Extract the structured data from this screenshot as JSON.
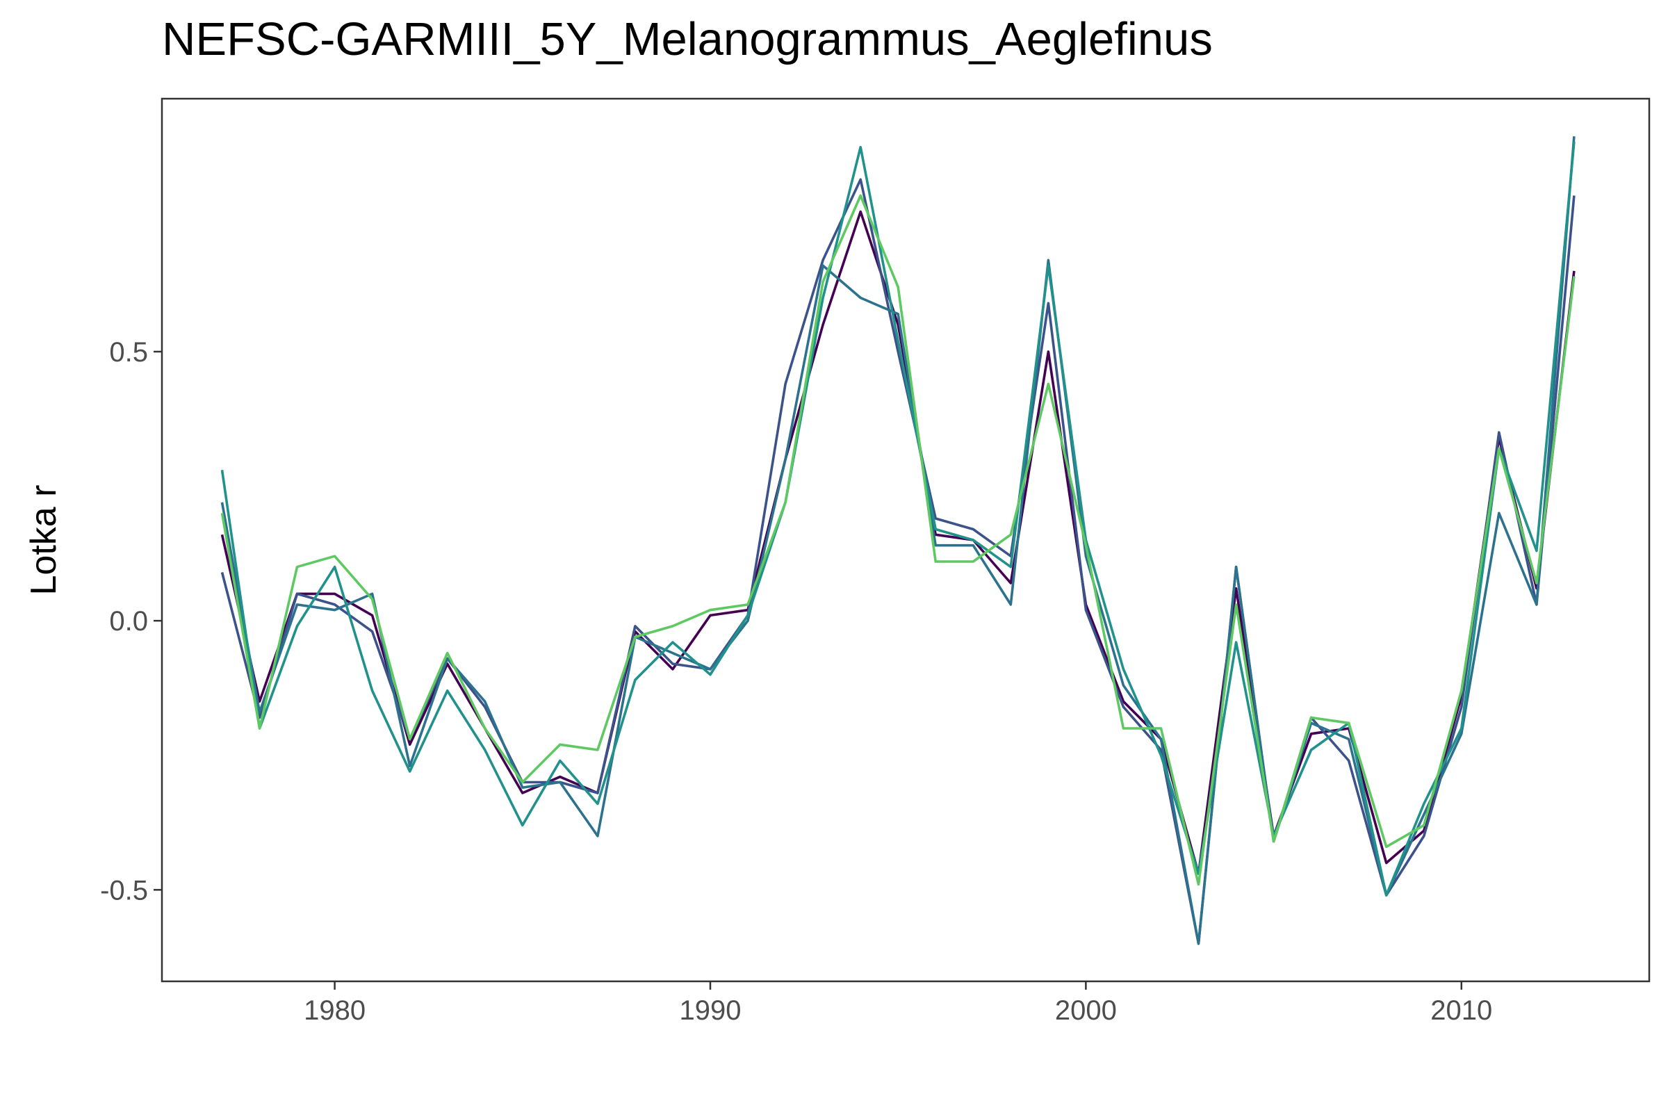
{
  "chart_data": {
    "type": "line",
    "title": "NEFSC-GARMIII_5Y_Melanogrammus_Aeglefinus",
    "xlabel": "",
    "ylabel": "Lotka r",
    "xlim": [
      1975.4,
      2015.0
    ],
    "ylim": [
      -0.67,
      0.97
    ],
    "x_ticks": [
      1980,
      1990,
      2000,
      2010
    ],
    "x_tick_labels": [
      "1980",
      "1990",
      "2000",
      "2010"
    ],
    "y_ticks": [
      0.5,
      0.0,
      -0.5
    ],
    "y_tick_labels": [
      "0.5",
      "0.0",
      "-0.5"
    ],
    "grid": false,
    "legend": "none",
    "x": [
      1977,
      1978,
      1979,
      1980,
      1981,
      1982,
      1983,
      1984,
      1985,
      1986,
      1987,
      1988,
      1989,
      1990,
      1991,
      1992,
      1993,
      1994,
      1995,
      1996,
      1997,
      1998,
      1999,
      2000,
      2001,
      2002,
      2003,
      2004,
      2005,
      2006,
      2007,
      2008,
      2009,
      2010,
      2011,
      2012,
      2013
    ],
    "series": [
      {
        "color": "#440154",
        "values": [
          0.16,
          -0.15,
          0.05,
          0.05,
          0.01,
          -0.23,
          -0.08,
          -0.2,
          -0.32,
          -0.29,
          -0.32,
          -0.02,
          -0.09,
          0.01,
          0.02,
          0.3,
          0.55,
          0.76,
          0.55,
          0.16,
          0.15,
          0.07,
          0.5,
          0.03,
          -0.15,
          -0.22,
          -0.47,
          0.06,
          -0.4,
          -0.21,
          -0.2,
          -0.45,
          -0.39,
          -0.14,
          0.34,
          0.06,
          0.65
        ]
      },
      {
        "color": "#3b528b",
        "values": [
          0.09,
          -0.18,
          0.05,
          0.03,
          -0.02,
          -0.22,
          -0.07,
          -0.16,
          -0.3,
          -0.3,
          -0.32,
          -0.01,
          -0.08,
          -0.09,
          0.01,
          0.44,
          0.67,
          0.82,
          0.5,
          0.19,
          0.17,
          0.12,
          0.59,
          0.02,
          -0.16,
          -0.24,
          -0.6,
          0.1,
          -0.41,
          -0.18,
          -0.26,
          -0.51,
          -0.4,
          -0.16,
          0.35,
          0.03,
          0.79
        ]
      },
      {
        "color": "#2c728e",
        "values": [
          0.22,
          -0.17,
          0.03,
          0.02,
          0.05,
          -0.27,
          -0.07,
          -0.15,
          -0.31,
          -0.3,
          -0.4,
          -0.03,
          -0.06,
          -0.09,
          0.0,
          0.3,
          0.66,
          0.6,
          0.57,
          0.14,
          0.14,
          0.03,
          0.67,
          0.12,
          -0.12,
          -0.22,
          -0.6,
          0.1,
          -0.41,
          -0.19,
          -0.22,
          -0.51,
          -0.36,
          -0.21,
          0.2,
          0.03,
          0.9
        ]
      },
      {
        "color": "#21918c",
        "values": [
          0.28,
          -0.2,
          -0.01,
          0.1,
          -0.13,
          -0.28,
          -0.13,
          -0.24,
          -0.38,
          -0.26,
          -0.34,
          -0.11,
          -0.04,
          -0.1,
          0.01,
          0.22,
          0.6,
          0.88,
          0.52,
          0.17,
          0.15,
          0.1,
          0.66,
          0.15,
          -0.09,
          -0.25,
          -0.47,
          -0.04,
          -0.4,
          -0.24,
          -0.19,
          -0.51,
          -0.34,
          -0.2,
          0.32,
          0.13,
          0.89
        ]
      },
      {
        "color": "#5ec962",
        "values": [
          0.2,
          -0.2,
          0.1,
          0.12,
          0.04,
          -0.22,
          -0.06,
          -0.2,
          -0.3,
          -0.23,
          -0.24,
          -0.03,
          -0.01,
          0.02,
          0.03,
          0.22,
          0.63,
          0.79,
          0.62,
          0.11,
          0.11,
          0.16,
          0.44,
          0.14,
          -0.2,
          -0.2,
          -0.49,
          0.03,
          -0.41,
          -0.18,
          -0.19,
          -0.42,
          -0.38,
          -0.13,
          0.32,
          0.07,
          0.64
        ]
      }
    ]
  }
}
